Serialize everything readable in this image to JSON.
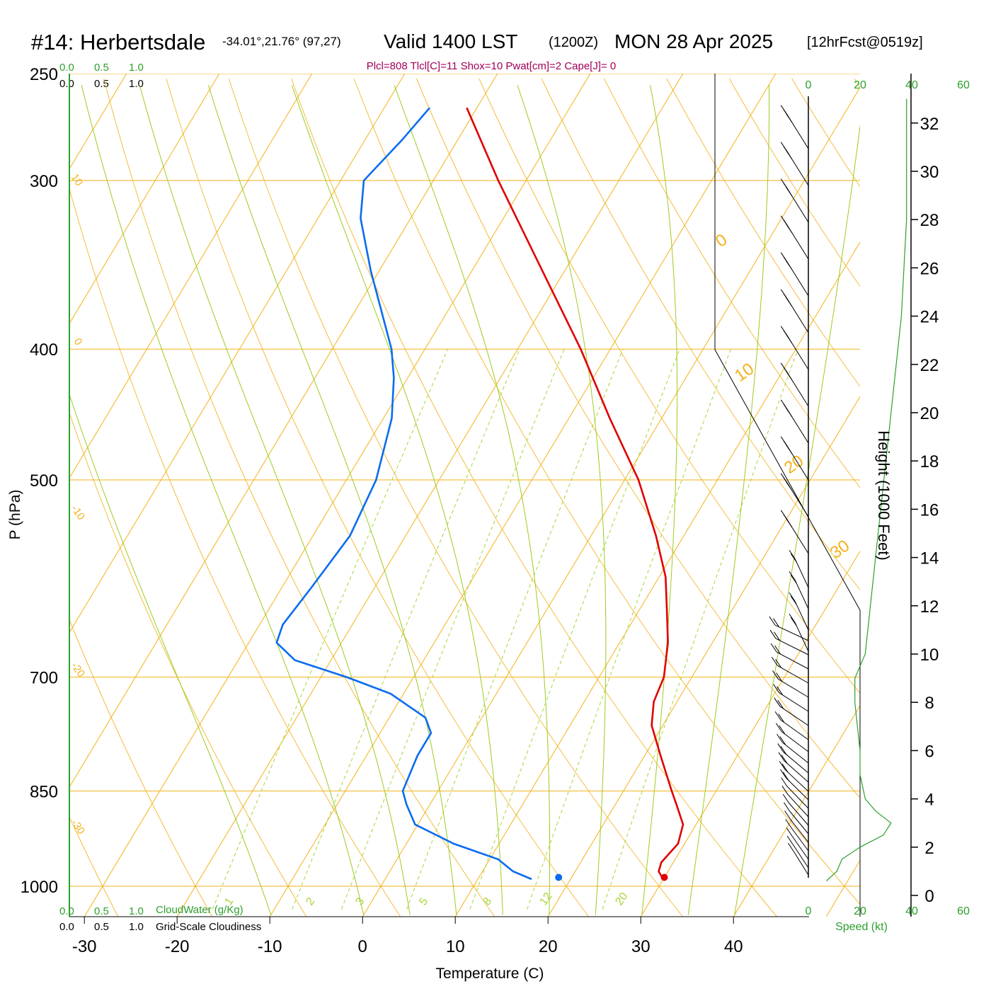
{
  "header": {
    "station": "#14: Herbertsdale",
    "coords": "-34.01°,21.76° (97,27)",
    "valid": "Valid 1400 LST",
    "zulu": "(1200Z)",
    "date": "MON 28 Apr 2025",
    "forecast": "[12hrFcst@0519z]",
    "indices": "Plcl=808 Tlcl[C]=11 Shox=10 Pwat[cm]=2 Cape[J]= 0"
  },
  "colors": {
    "temperature": "#e00000",
    "dewpoint": "#0a6cf0",
    "isotherm": "#f2b21b",
    "isobar": "#f2b21b",
    "dry_adiabat": "#9ccc1e",
    "mixing_ratio": "#a8d43a",
    "green_text": "#2ca02c",
    "magenta": "#a0005a",
    "axis": "#000000"
  },
  "legend": {
    "cloudwater_scale": [
      "0.0",
      "0.5",
      "1.0"
    ],
    "cloudwater_label": "CloudWater (g/Kg)",
    "cloudiness_scale": [
      "0.0",
      "0.5",
      "1.0"
    ],
    "cloudiness_label": "Grid-Scale Cloudiness"
  },
  "chart_data": {
    "type": "line",
    "diagram": "skew-T log-P",
    "xlabel": "Temperature (C)",
    "ylabel": "P (hPa)",
    "x_ticks": [
      -30,
      -20,
      -10,
      0,
      10,
      20,
      30,
      40
    ],
    "p_ticks": [
      250,
      300,
      400,
      500,
      700,
      850,
      1000
    ],
    "isotherm_labels": [
      10,
      0,
      -10,
      -20,
      -30,
      0,
      10,
      20,
      30
    ],
    "mixing_ratio_labels": [
      "1",
      "2",
      "3",
      "5",
      "8",
      "12",
      "20"
    ],
    "series": [
      {
        "name": "Temperature",
        "points": [
          {
            "p": 988,
            "t": 30.0
          },
          {
            "p": 975,
            "t": 29.0
          },
          {
            "p": 960,
            "t": 28.7
          },
          {
            "p": 930,
            "t": 29.3
          },
          {
            "p": 900,
            "t": 28.6
          },
          {
            "p": 870,
            "t": 26.6
          },
          {
            "p": 850,
            "t": 25.2
          },
          {
            "p": 800,
            "t": 21.7
          },
          {
            "p": 760,
            "t": 18.8
          },
          {
            "p": 730,
            "t": 17.5
          },
          {
            "p": 700,
            "t": 17.0
          },
          {
            "p": 660,
            "t": 15.2
          },
          {
            "p": 620,
            "t": 12.7
          },
          {
            "p": 590,
            "t": 10.7
          },
          {
            "p": 550,
            "t": 7.0
          },
          {
            "p": 500,
            "t": 1.5
          },
          {
            "p": 450,
            "t": -5.6
          },
          {
            "p": 400,
            "t": -13.2
          },
          {
            "p": 350,
            "t": -22.4
          },
          {
            "p": 300,
            "t": -33.0
          },
          {
            "p": 265,
            "t": -41.1
          }
        ]
      },
      {
        "name": "Dewpoint",
        "points": [
          {
            "p": 988,
            "t": 15.8
          },
          {
            "p": 975,
            "t": 13.3
          },
          {
            "p": 955,
            "t": 10.9
          },
          {
            "p": 930,
            "t": 5.1
          },
          {
            "p": 900,
            "t": -0.3
          },
          {
            "p": 870,
            "t": -2.5
          },
          {
            "p": 850,
            "t": -3.8
          },
          {
            "p": 800,
            "t": -4.5
          },
          {
            "p": 770,
            "t": -4.5
          },
          {
            "p": 750,
            "t": -6.1
          },
          {
            "p": 720,
            "t": -11.4
          },
          {
            "p": 700,
            "t": -17.2
          },
          {
            "p": 680,
            "t": -23.9
          },
          {
            "p": 660,
            "t": -27.0
          },
          {
            "p": 640,
            "t": -27.5
          },
          {
            "p": 600,
            "t": -26.8
          },
          {
            "p": 550,
            "t": -26.0
          },
          {
            "p": 500,
            "t": -26.8
          },
          {
            "p": 450,
            "t": -29.1
          },
          {
            "p": 420,
            "t": -31.5
          },
          {
            "p": 400,
            "t": -33.6
          },
          {
            "p": 350,
            "t": -40.9
          },
          {
            "p": 320,
            "t": -45.4
          },
          {
            "p": 300,
            "t": -47.5
          },
          {
            "p": 280,
            "t": -46.0
          },
          {
            "p": 265,
            "t": -45.1
          }
        ]
      }
    ],
    "surface_markers": [
      {
        "name": "parcel temperature",
        "p": 985,
        "t": 30.0
      },
      {
        "name": "parcel dewpoint",
        "p": 985,
        "t": 18.6
      }
    ],
    "height_axis": {
      "label": "Height (1000 Feet)",
      "ticks": [
        0,
        2,
        4,
        6,
        8,
        10,
        12,
        14,
        16,
        18,
        20,
        22,
        24,
        26,
        28,
        30,
        32
      ]
    },
    "speed_axis": {
      "label": "Speed (kt)",
      "ticks": [
        0,
        20,
        40,
        60
      ]
    },
    "wind_profile": {
      "height_kft": [
        0.6,
        1.0,
        1.5,
        2.0,
        2.5,
        3.0,
        3.5,
        4.0,
        4.5,
        5.0,
        6.0,
        7.0,
        8.0,
        9.0,
        10.0,
        11.0,
        12.0,
        14.0,
        16.0,
        18.0,
        20.0,
        22.0,
        24.0,
        26.0,
        28.0,
        30.0,
        32.0,
        33.0
      ],
      "speed_kt": [
        7,
        11,
        13,
        20,
        29,
        32,
        26,
        22,
        21,
        20,
        20,
        19,
        18,
        18,
        22,
        23,
        24,
        26,
        28,
        30,
        32,
        34,
        36,
        37,
        38,
        38,
        38,
        38
      ]
    }
  }
}
